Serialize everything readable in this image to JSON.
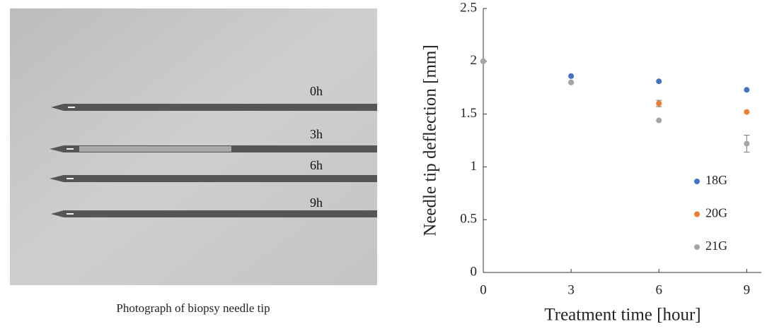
{
  "photo": {
    "labels": [
      "0h",
      "3h",
      "6h",
      "9h"
    ],
    "caption": "Photograph of biopsy needle tip"
  },
  "chart_data": {
    "type": "scatter",
    "xlabel": "Treatment time [hour]",
    "ylabel": "Needle tip deflection [mm]",
    "x": [
      0,
      3,
      6,
      9
    ],
    "series": [
      {
        "name": "18G",
        "color": "#4472c4",
        "values": [
          2,
          1.86,
          1.81,
          1.73
        ]
      },
      {
        "name": "20G",
        "color": "#ed7d31",
        "values": [
          2,
          1.8,
          1.6,
          1.52
        ],
        "errors": [
          null,
          null,
          0.03,
          null
        ]
      },
      {
        "name": "21G",
        "color": "#a5a5a5",
        "values": [
          2,
          1.8,
          1.44,
          1.22
        ],
        "errors": [
          null,
          null,
          null,
          0.08
        ]
      }
    ],
    "xlim": [
      0,
      9.5
    ],
    "ylim": [
      0,
      2.5
    ],
    "xticks": [
      0,
      3,
      6,
      9
    ],
    "yticks": [
      0,
      0.5,
      1,
      1.5,
      2,
      2.5
    ],
    "legend": "lower right",
    "grid": false
  }
}
